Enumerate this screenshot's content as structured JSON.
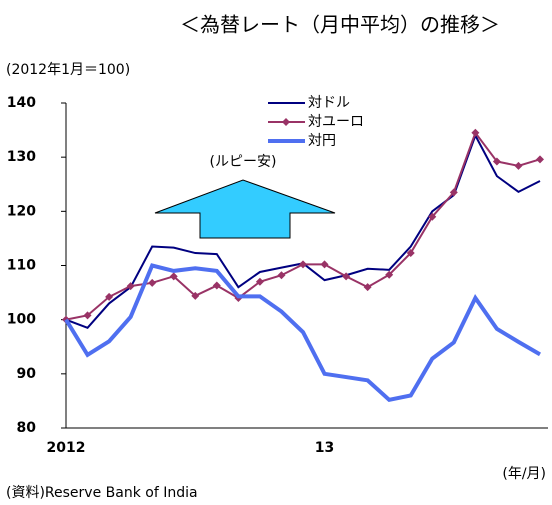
{
  "chart_data": {
    "type": "line",
    "title": "＜為替レート（月中平均）の推移＞",
    "y_label": "(2012年1月＝100)",
    "x_label": "(年/月)",
    "source": "(資料)Reserve Bank of  India",
    "annotation": "(ルピー安)",
    "categories": [
      "2012",
      null,
      null,
      null,
      null,
      null,
      null,
      null,
      null,
      null,
      null,
      null,
      "13",
      null,
      null,
      null,
      null,
      null,
      null,
      null,
      null,
      null,
      null
    ],
    "series": [
      {
        "name": "対ドル",
        "color": "#000080",
        "values": [
          100,
          98.5,
          103,
          106,
          113.5,
          113.3,
          112.3,
          112.1,
          106,
          108.8,
          109.6,
          110.4,
          107.3,
          108.2,
          109.4,
          109.2,
          113.5,
          120,
          123,
          134,
          126.5,
          123.6,
          125.6
        ]
      },
      {
        "name": "対ユーロ",
        "color": "#993366",
        "values": [
          100,
          100.8,
          104.2,
          106.2,
          106.8,
          108,
          104.4,
          106.3,
          104,
          107,
          108.2,
          110.2,
          110.2,
          108,
          106,
          108.3,
          112.3,
          119,
          123.5,
          134.5,
          129.2,
          128.4,
          129.6
        ]
      },
      {
        "name": "対円",
        "color": "#4f6ff0",
        "values": [
          100,
          93.5,
          96,
          100.5,
          110,
          109,
          109.5,
          109,
          104.3,
          104.3,
          101.5,
          97.7,
          90,
          89.4,
          88.8,
          85.2,
          86,
          92.8,
          95.8,
          104,
          98.3,
          95.9,
          93.6
        ]
      }
    ],
    "ylim": [
      80,
      140
    ],
    "yticks": [
      80,
      90,
      100,
      110,
      120,
      130,
      140
    ]
  }
}
